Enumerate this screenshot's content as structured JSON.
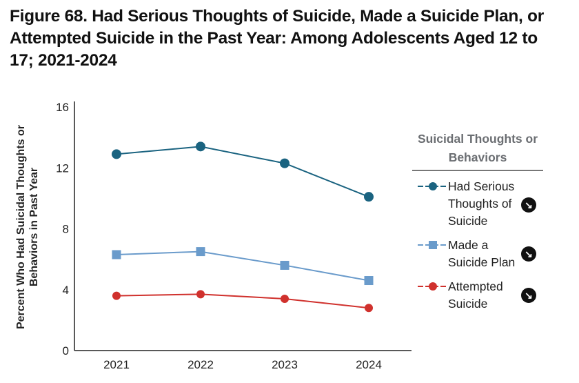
{
  "chart_data": {
    "type": "line",
    "title": "Figure 68. Had Serious Thoughts of Suicide, Made a Suicide Plan, or Attempted Suicide in the Past Year: Among Adolescents Aged 12 to 17; 2021-2024",
    "xlabel": "",
    "ylabel": "Percent Who Had Suicidal Thoughts or Behaviors in Past Year",
    "categories": [
      "2021",
      "2022",
      "2023",
      "2024"
    ],
    "ylim": [
      0,
      16
    ],
    "yticks": [
      "0",
      "4",
      "8",
      "12",
      "16"
    ],
    "grid": false,
    "legend": {
      "title": "Suicidal Thoughts or Behaviors",
      "placement": "right",
      "significance_icon": "down-arrow-circle-icon"
    },
    "series": [
      {
        "name": "Had Serious Thoughts of Suicide",
        "values": [
          12.9,
          13.4,
          12.3,
          10.1
        ],
        "color": "#1a6380",
        "marker": "circle"
      },
      {
        "name": "Made a Suicide Plan",
        "values": [
          6.3,
          6.5,
          5.6,
          4.6
        ],
        "color": "#6a9bcb",
        "marker": "square"
      },
      {
        "name": "Attempted Suicide",
        "values": [
          3.6,
          3.7,
          3.4,
          2.8
        ],
        "color": "#d0312d",
        "marker": "octagon"
      }
    ]
  }
}
